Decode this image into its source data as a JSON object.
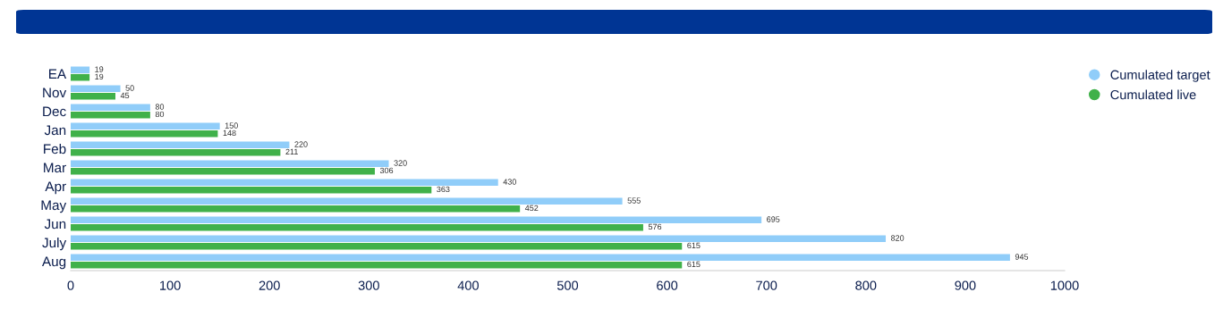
{
  "chart_data": {
    "type": "bar",
    "orientation": "horizontal",
    "categories": [
      "EA",
      "Nov",
      "Dec",
      "Jan",
      "Feb",
      "Mar",
      "Apr",
      "May",
      "Jun",
      "July",
      "Aug"
    ],
    "series": [
      {
        "name": "Cumulated target",
        "color": "#90cdf9",
        "values": [
          19,
          50,
          80,
          150,
          220,
          320,
          430,
          555,
          695,
          820,
          945
        ]
      },
      {
        "name": "Cumulated live",
        "color": "#40b14a",
        "values": [
          19,
          45,
          80,
          148,
          211,
          306,
          363,
          452,
          576,
          615,
          615
        ]
      }
    ],
    "xlim": [
      0,
      1000
    ],
    "xticks": [
      0,
      100,
      200,
      300,
      400,
      500,
      600,
      700,
      800,
      900,
      1000
    ],
    "grid": false,
    "legend": "top right",
    "data_labels": true
  }
}
